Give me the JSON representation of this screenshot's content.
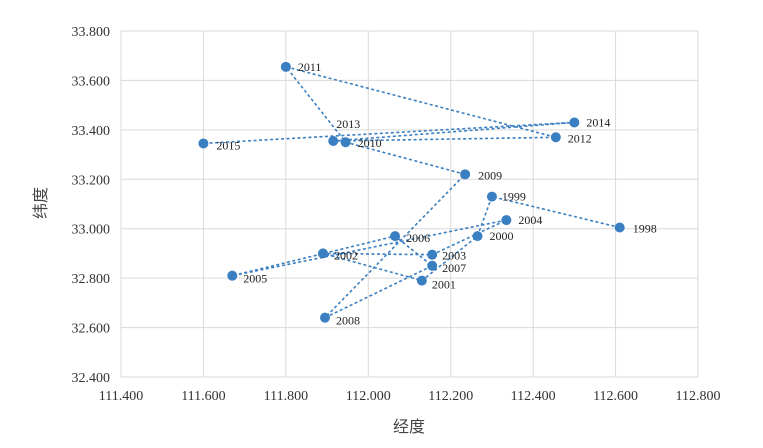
{
  "chart_data": {
    "type": "scatter",
    "title": "",
    "xlabel": "经度",
    "ylabel": "纬度",
    "xlim": [
      111.4,
      112.8
    ],
    "ylim": [
      32.4,
      33.8
    ],
    "x_ticks": [
      "111.400",
      "111.600",
      "111.800",
      "112.000",
      "112.200",
      "112.400",
      "112.600",
      "112.800"
    ],
    "y_ticks": [
      "32.400",
      "32.600",
      "32.800",
      "33.000",
      "33.200",
      "33.400",
      "33.600",
      "33.800"
    ],
    "grid": true,
    "connected": true,
    "line_style": "dotted",
    "color": "#3a7fc1",
    "points": [
      {
        "label": "1998",
        "x": 112.61,
        "y": 33.005
      },
      {
        "label": "1999",
        "x": 112.3,
        "y": 33.13
      },
      {
        "label": "2000",
        "x": 112.265,
        "y": 32.97
      },
      {
        "label": "2001",
        "x": 112.13,
        "y": 32.79
      },
      {
        "label": "2002",
        "x": 111.89,
        "y": 32.9
      },
      {
        "label": "2003",
        "x": 112.155,
        "y": 32.895
      },
      {
        "label": "2004",
        "x": 112.335,
        "y": 33.035
      },
      {
        "label": "2005",
        "x": 111.67,
        "y": 32.81
      },
      {
        "label": "2006",
        "x": 112.065,
        "y": 32.97
      },
      {
        "label": "2007",
        "x": 112.155,
        "y": 32.85
      },
      {
        "label": "2008",
        "x": 111.895,
        "y": 32.64
      },
      {
        "label": "2009",
        "x": 112.235,
        "y": 33.22
      },
      {
        "label": "2010",
        "x": 111.945,
        "y": 33.35
      },
      {
        "label": "2011",
        "x": 111.8,
        "y": 33.655
      },
      {
        "label": "2012",
        "x": 112.455,
        "y": 33.37
      },
      {
        "label": "2013",
        "x": 111.915,
        "y": 33.355
      },
      {
        "label": "2014",
        "x": 112.5,
        "y": 33.43
      },
      {
        "label": "2015",
        "x": 111.6,
        "y": 33.345
      }
    ]
  }
}
